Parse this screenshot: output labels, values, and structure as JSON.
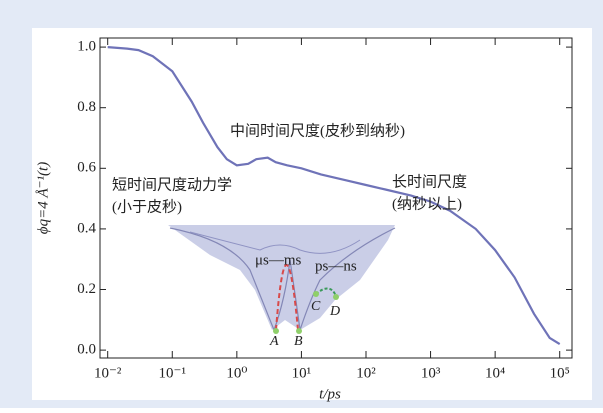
{
  "chart_data": {
    "type": "line",
    "y_label": "ϕq=4 Å⁻¹(t)",
    "x_label": "t/ps",
    "x": [
      0.01,
      0.02,
      0.03,
      0.05,
      0.1,
      0.2,
      0.3,
      0.5,
      0.7,
      1,
      1.5,
      2,
      3,
      4,
      6,
      10,
      20,
      50,
      100,
      200,
      500,
      1000,
      2000,
      5000,
      10000,
      20000,
      40000,
      70000,
      100000
    ],
    "values": [
      1.0,
      0.995,
      0.99,
      0.97,
      0.92,
      0.82,
      0.75,
      0.67,
      0.63,
      0.61,
      0.615,
      0.63,
      0.635,
      0.62,
      0.61,
      0.6,
      0.58,
      0.56,
      0.545,
      0.53,
      0.51,
      0.49,
      0.46,
      0.4,
      0.33,
      0.24,
      0.12,
      0.04,
      0.02
    ],
    "color": "#6f73b8",
    "log_x": true,
    "xlim": [
      0.0076,
      155000
    ],
    "ylim": [
      -0.026,
      1.03
    ],
    "xticks": [
      {
        "value": 0.01,
        "label": "10⁻²"
      },
      {
        "value": 0.1,
        "label": "10⁻¹"
      },
      {
        "value": 1,
        "label": "10⁰"
      },
      {
        "value": 10,
        "label": "10¹"
      },
      {
        "value": 100,
        "label": "10²"
      },
      {
        "value": 1000,
        "label": "10³"
      },
      {
        "value": 10000,
        "label": "10⁴"
      },
      {
        "value": 100000,
        "label": "10⁵"
      }
    ],
    "yticks": [
      {
        "value": 0,
        "label": "0.0"
      },
      0.2,
      0.4,
      0.6,
      0.8,
      {
        "value": 1,
        "label": "1.0"
      }
    ],
    "annotations": [
      "中间时间尺度(皮秒到纳秒)",
      "长时间尺度",
      "(纳秒以上)",
      "短时间尺度动力学",
      "(小于皮秒)",
      "μs—ms",
      "ps—ns",
      "A",
      "B",
      "C",
      "D"
    ]
  }
}
